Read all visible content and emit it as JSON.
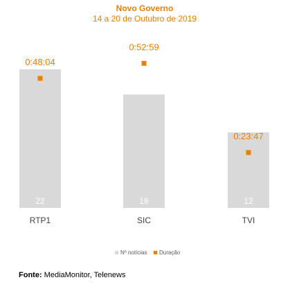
{
  "chart_data": {
    "type": "bar",
    "title": "Novo Governo",
    "subtitle": "14 a 20 de Outubro de 2019",
    "categories": [
      "RTP1",
      "SIC",
      "TVI"
    ],
    "series": [
      {
        "name": "Nº notícias",
        "type": "bar",
        "values": [
          22,
          18,
          12
        ],
        "color": "#d9d9d9"
      },
      {
        "name": "Duração",
        "type": "scatter",
        "values": [
          "0:48:04",
          "0:52:59",
          "0:23:47"
        ],
        "seconds": [
          2884,
          3179,
          1427
        ],
        "color": "#f07c00"
      }
    ],
    "legend_position": "bottom",
    "grid": false
  },
  "colors": {
    "accent": "#f07c00",
    "bar": "#d9d9d9",
    "bar_label": "#ffffff",
    "category_label": "#404040",
    "legend_text": "#595959"
  },
  "source": {
    "label": "Fonte:",
    "text": "MediaMonitor, Telenews"
  }
}
